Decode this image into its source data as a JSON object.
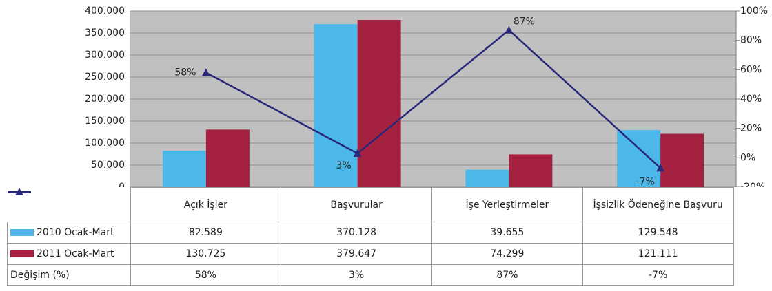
{
  "chart_data": {
    "type": "bar",
    "categories": [
      "Açık İşler",
      "Başvurular",
      "İşe Yerleştirmeler",
      "İşsizlik Ödeneğine Başvuru"
    ],
    "series": [
      {
        "name": "2010 Ocak-Mart",
        "color": "#4cb8ea",
        "values": [
          82589,
          370128,
          39655,
          129548
        ],
        "value_labels": [
          "82.589",
          "370.128",
          "39.655",
          "129.548"
        ]
      },
      {
        "name": "2011 Ocak-Mart",
        "color": "#a4223f",
        "values": [
          130725,
          379647,
          74299,
          121111
        ],
        "value_labels": [
          "130.725",
          "379.647",
          "74.299",
          "121.111"
        ]
      },
      {
        "name": "Değişim (%)",
        "type": "line",
        "axis": "y2",
        "color": "#28287a",
        "values": [
          58,
          3,
          87,
          -7
        ],
        "value_labels": [
          "58%",
          "3%",
          "87%",
          "-7%"
        ]
      }
    ],
    "ylim": [
      0,
      400000
    ],
    "yticks": [
      {
        "value": 0,
        "label": "0"
      },
      {
        "value": 50000,
        "label": "50.000"
      },
      {
        "value": 100000,
        "label": "100.000"
      },
      {
        "value": 150000,
        "label": "150.000"
      },
      {
        "value": 200000,
        "label": "200.000"
      },
      {
        "value": 250000,
        "label": "250.000"
      },
      {
        "value": 300000,
        "label": "300.000"
      },
      {
        "value": 350000,
        "label": "350.000"
      },
      {
        "value": 400000,
        "label": "400.000"
      }
    ],
    "y2lim": [
      -20,
      100
    ],
    "y2ticks": [
      {
        "value": -20,
        "label": "-20%"
      },
      {
        "value": 0,
        "label": "0%"
      },
      {
        "value": 20,
        "label": "20%"
      },
      {
        "value": 40,
        "label": "40%"
      },
      {
        "value": 60,
        "label": "60%"
      },
      {
        "value": 80,
        "label": "80%"
      },
      {
        "value": 100,
        "label": "100%"
      }
    ],
    "grid": true
  }
}
